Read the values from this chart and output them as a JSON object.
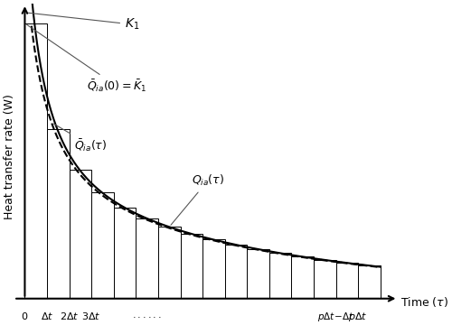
{
  "ylabel": "Heat transfer rate (W)",
  "num_bars": 16,
  "x_max": 16,
  "bar_color": "white",
  "bar_edgecolor": "black",
  "solid_line_color": "black",
  "dashed_line_color": "black",
  "figsize": [
    5.0,
    3.6
  ],
  "dpi": 100,
  "K1_amp": 2.8,
  "K1_decay": 3.5,
  "solid_extra": 0.6,
  "solid_extra_decay": 1.5,
  "dashed_shift": 0.15
}
